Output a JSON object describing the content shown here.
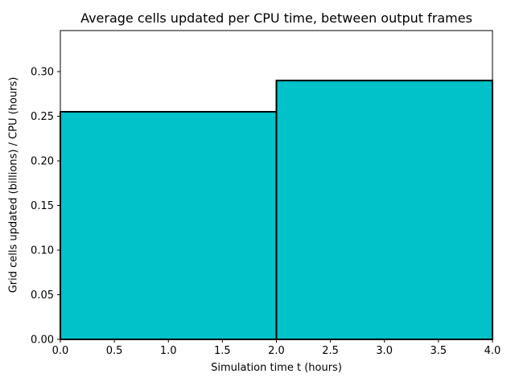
{
  "chart_data": {
    "type": "bar",
    "title": "Average cells updated per CPU time, between output frames",
    "xlabel": "Simulation time t (hours)",
    "ylabel": "Grid cells updated (billions) / CPU (hours)",
    "bars": [
      {
        "x_start": 0.0,
        "x_end": 2.0,
        "value": 0.255
      },
      {
        "x_start": 2.0,
        "x_end": 4.0,
        "value": 0.29
      }
    ],
    "xlim": [
      0.0,
      4.0
    ],
    "ylim": [
      0.0,
      0.346
    ],
    "x_ticks": [
      0.0,
      0.5,
      1.0,
      1.5,
      2.0,
      2.5,
      3.0,
      3.5,
      4.0
    ],
    "x_tick_labels": [
      "0.0",
      "0.5",
      "1.0",
      "1.5",
      "2.0",
      "2.5",
      "3.0",
      "3.5",
      "4.0"
    ],
    "y_ticks": [
      0.0,
      0.05,
      0.1,
      0.15,
      0.2,
      0.25,
      0.3
    ],
    "y_tick_labels": [
      "0.00",
      "0.05",
      "0.10",
      "0.15",
      "0.20",
      "0.25",
      "0.30"
    ],
    "bar_fill": "#00c2c8",
    "bar_edge": "#000000",
    "grid": false,
    "legend": null
  }
}
